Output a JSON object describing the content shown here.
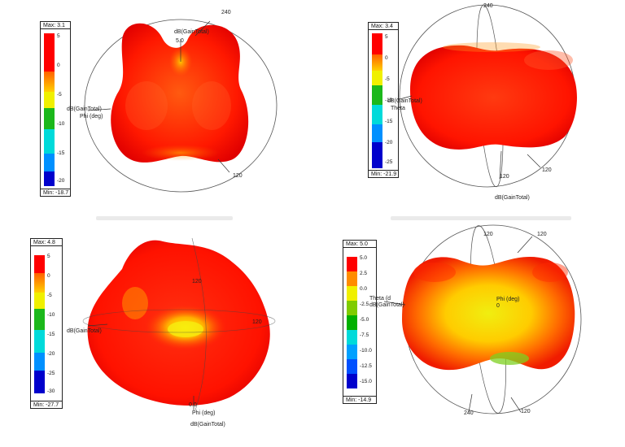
{
  "colors": [
    "#ff0000",
    "#ff8c00",
    "#f0f000",
    "#7fcc00",
    "#00b000",
    "#00dada",
    "#0090ff",
    "#0000cc"
  ],
  "plots": [
    {
      "legend": {
        "max": "Max: 3.1",
        "min": "Min: -18.7",
        "ticks": [
          "5",
          "0",
          "-5",
          "-10",
          "-15",
          "-20"
        ]
      },
      "labels": {
        "axis_top": "240",
        "gain_top": "dB(GainTotal)",
        "val_top": "5.0",
        "gain_left": "dB(GainTotal)",
        "phi": "Phi (deg)",
        "axis_bottom": "120"
      }
    },
    {
      "legend": {
        "max": "Max: 3.4",
        "min": "Min: -21.9",
        "ticks": [
          "5",
          "0",
          "-5",
          "-10",
          "-15",
          "-20",
          "-25"
        ]
      },
      "labels": {
        "gain_left": "dB(GainTotal)",
        "theta": "Theta",
        "axis_a": "120",
        "axis_b": "120",
        "gain_bottom": "dB(GainTotal)",
        "axis_top": "240"
      }
    },
    {
      "legend": {
        "max": "Max: 4.8",
        "min": "Min: -27.7",
        "ticks": [
          "5",
          "0",
          "-5",
          "-10",
          "-15",
          "-20",
          "-25",
          "-30"
        ]
      },
      "labels": {
        "axis_top": "120",
        "gain_left": "dB(GainTotal)",
        "axis_right": "120",
        "val_bottom": "0.0",
        "phi": "Phi (deg)",
        "gain_bottom": "dB(GainTotal)"
      }
    },
    {
      "legend": {
        "max": "Max: 5.0",
        "min": "Min: -14.9",
        "ticks": [
          "5.0",
          "2.5",
          "0.0",
          "-2.5",
          "-5.0",
          "-7.5",
          "-10.0",
          "-12.5",
          "-15.0"
        ]
      },
      "labels": {
        "axis_top": "120",
        "axis_topright": "120",
        "theta": "Theta (d",
        "gain_left": "dB(GainTotal)",
        "phi": "Phi (deg)",
        "val_center": "0",
        "axis_bottom": "240",
        "axis_bottomright": "120"
      }
    }
  ]
}
